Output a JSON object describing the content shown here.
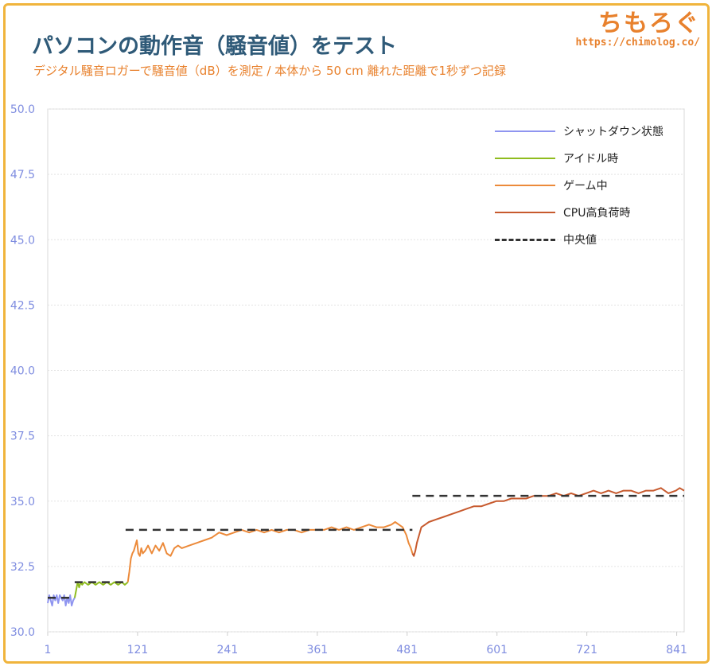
{
  "header": {
    "title": "パソコンの動作音（騒音値）をテスト",
    "subtitle": "デジタル騒音ロガーで騒音値（dB）を測定 / 本体から 50 cm 離れた距離で1秒ずつ記録"
  },
  "brand": {
    "name": "ちもろぐ",
    "url": "https://chimolog.co/"
  },
  "legend": {
    "items": [
      {
        "label": "シャットダウン状態",
        "color": "#8f95f0",
        "style": "solid"
      },
      {
        "label": "アイドル時",
        "color": "#8fbc1f",
        "style": "solid"
      },
      {
        "label": "ゲーム中",
        "color": "#ec8a3a",
        "style": "solid"
      },
      {
        "label": "CPU高負荷時",
        "color": "#c75a2e",
        "style": "solid"
      },
      {
        "label": "中央値",
        "color": "#333333",
        "style": "dashed"
      }
    ]
  },
  "chart_data": {
    "type": "line",
    "xlabel": "",
    "ylabel": "",
    "xlim": [
      1,
      851
    ],
    "ylim": [
      30.0,
      50.0
    ],
    "x_ticks": [
      1,
      121,
      241,
      361,
      481,
      601,
      721,
      841
    ],
    "y_ticks": [
      "30.0",
      "32.5",
      "35.0",
      "37.5",
      "40.0",
      "42.5",
      "45.0",
      "47.5",
      "50.0"
    ],
    "grid": "horizontal",
    "legend_position": "top-right",
    "series": [
      {
        "name": "シャットダウン状態",
        "color": "#8f95f0",
        "x": [
          1,
          3,
          5,
          7,
          9,
          11,
          13,
          15,
          17,
          19,
          21,
          23,
          25,
          27,
          29,
          31,
          33,
          35,
          37
        ],
        "y": [
          31.1,
          31.4,
          31.2,
          31.0,
          31.4,
          31.2,
          31.4,
          31.1,
          31.4,
          31.3,
          31.2,
          31.4,
          31.0,
          31.3,
          31.1,
          31.4,
          31.0,
          31.2,
          31.3
        ]
      },
      {
        "name": "アイドル時",
        "color": "#8fbc1f",
        "x": [
          37,
          39,
          41,
          43,
          45,
          47,
          50,
          55,
          60,
          65,
          70,
          75,
          80,
          85,
          90,
          95,
          100,
          104,
          108
        ],
        "y": [
          31.3,
          31.6,
          31.9,
          31.7,
          31.9,
          31.8,
          31.9,
          31.8,
          31.9,
          31.8,
          31.9,
          31.8,
          31.9,
          31.8,
          31.9,
          31.8,
          31.9,
          31.8,
          31.9
        ]
      },
      {
        "name": "ゲーム中",
        "color": "#ec8a3a",
        "x": [
          108,
          110,
          112,
          114,
          116,
          118,
          120,
          122,
          124,
          126,
          128,
          131,
          135,
          140,
          145,
          150,
          155,
          160,
          165,
          170,
          175,
          180,
          190,
          200,
          210,
          220,
          230,
          240,
          250,
          260,
          270,
          280,
          290,
          300,
          310,
          320,
          330,
          340,
          350,
          360,
          370,
          380,
          390,
          400,
          410,
          420,
          430,
          440,
          450,
          460,
          465,
          470,
          475,
          480,
          483,
          486,
          488
        ],
        "y": [
          31.9,
          32.3,
          32.8,
          33.0,
          33.1,
          33.3,
          33.5,
          33.0,
          32.9,
          33.2,
          33.0,
          33.1,
          33.3,
          33.0,
          33.3,
          33.1,
          33.4,
          33.0,
          32.9,
          33.2,
          33.3,
          33.2,
          33.3,
          33.4,
          33.5,
          33.6,
          33.8,
          33.7,
          33.8,
          33.9,
          33.8,
          33.9,
          33.8,
          33.9,
          33.8,
          33.9,
          33.9,
          33.8,
          33.9,
          33.9,
          33.9,
          34.0,
          33.9,
          34.0,
          33.9,
          34.0,
          34.1,
          34.0,
          34.0,
          34.1,
          34.2,
          34.1,
          34.0,
          33.7,
          33.4,
          33.2,
          33.0
        ]
      },
      {
        "name": "CPU高負荷時",
        "color": "#c75a2e",
        "x": [
          488,
          490,
          492,
          494,
          497,
          500,
          505,
          510,
          520,
          530,
          540,
          550,
          560,
          570,
          580,
          590,
          600,
          610,
          620,
          630,
          640,
          650,
          660,
          670,
          680,
          690,
          700,
          710,
          720,
          730,
          740,
          750,
          760,
          770,
          780,
          790,
          800,
          810,
          820,
          830,
          840,
          845,
          851
        ],
        "y": [
          33.0,
          32.9,
          33.1,
          33.4,
          33.7,
          34.0,
          34.1,
          34.2,
          34.3,
          34.4,
          34.5,
          34.6,
          34.7,
          34.8,
          34.8,
          34.9,
          35.0,
          35.0,
          35.1,
          35.1,
          35.1,
          35.2,
          35.2,
          35.2,
          35.3,
          35.2,
          35.3,
          35.2,
          35.3,
          35.4,
          35.3,
          35.4,
          35.3,
          35.4,
          35.4,
          35.3,
          35.4,
          35.4,
          35.5,
          35.3,
          35.4,
          35.5,
          35.4
        ]
      }
    ],
    "medians": [
      {
        "name": "中央値",
        "x": [
          1,
          37
        ],
        "y": 31.3
      },
      {
        "name": "中央値",
        "x": [
          37,
          108
        ],
        "y": 31.9
      },
      {
        "name": "中央値",
        "x": [
          105,
          488
        ],
        "y": 33.9
      },
      {
        "name": "中央値",
        "x": [
          488,
          851
        ],
        "y": 35.2
      }
    ]
  }
}
